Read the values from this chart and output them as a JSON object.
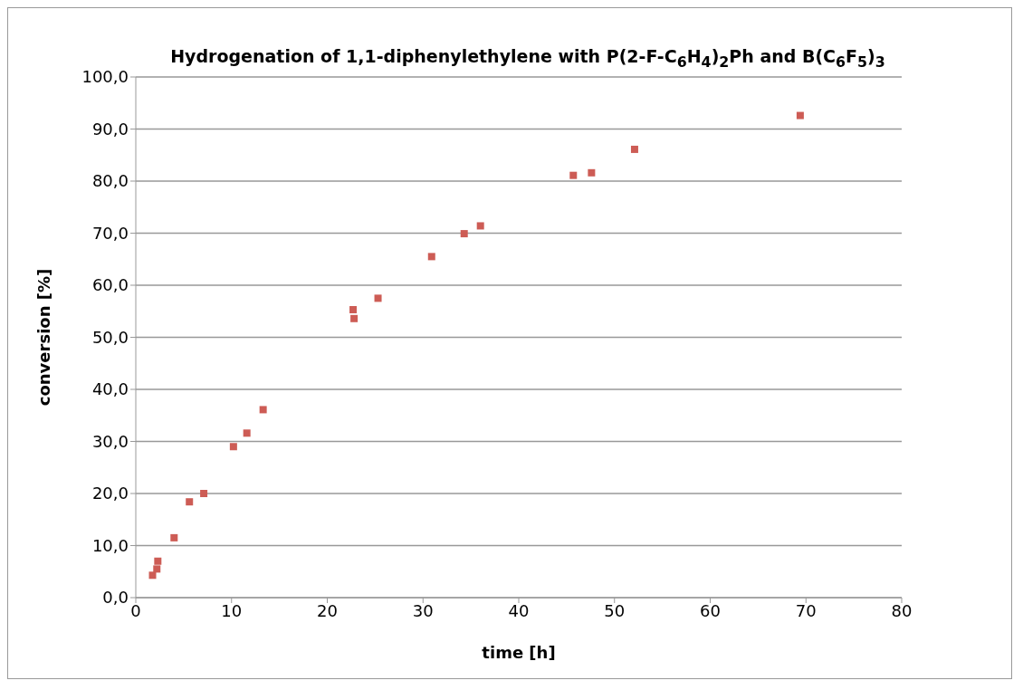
{
  "chart_data": {
    "type": "scatter",
    "title": "Hydrogenation of 1,1-diphenylethylene with P(2-F-C$_{6}$H$_{4}$)$_{2}$Ph  and B(C$_{6}$F$_{5}$)$_{3}$",
    "xlabel": "time [h]",
    "ylabel": "conversion [%]",
    "x": [
      1.75,
      2.2,
      2.3,
      4.0,
      5.6,
      7.1,
      10.2,
      11.6,
      13.3,
      22.7,
      22.8,
      25.3,
      30.9,
      34.3,
      36.0,
      45.7,
      47.6,
      52.1,
      69.4
    ],
    "series": [
      {
        "color": "#cd5c55",
        "values": [
          4.3,
          5.5,
          7.0,
          11.5,
          18.4,
          20.0,
          29.0,
          31.6,
          36.1,
          55.3,
          53.6,
          57.5,
          65.5,
          69.9,
          71.4,
          81.1,
          81.6,
          86.1,
          92.6
        ]
      }
    ],
    "xlim": [
      0,
      80
    ],
    "xticks": [
      0,
      10,
      20,
      30,
      40,
      50,
      60,
      70,
      80
    ],
    "ylim": [
      0,
      100
    ],
    "yticks": [
      {
        "value": 0,
        "label": "0,0"
      },
      {
        "value": 10,
        "label": "10,0"
      },
      {
        "value": 20,
        "label": "20,0"
      },
      {
        "value": 30,
        "label": "30,0"
      },
      {
        "value": 40,
        "label": "40,0"
      },
      {
        "value": 50,
        "label": "50,0"
      },
      {
        "value": 60,
        "label": "60,0"
      },
      {
        "value": 70,
        "label": "70,0"
      },
      {
        "value": 80,
        "label": "80,0"
      },
      {
        "value": 90,
        "label": "90,0"
      },
      {
        "value": 100,
        "label": "100,0"
      }
    ],
    "grid": "y",
    "marker": "square",
    "legend": false
  }
}
